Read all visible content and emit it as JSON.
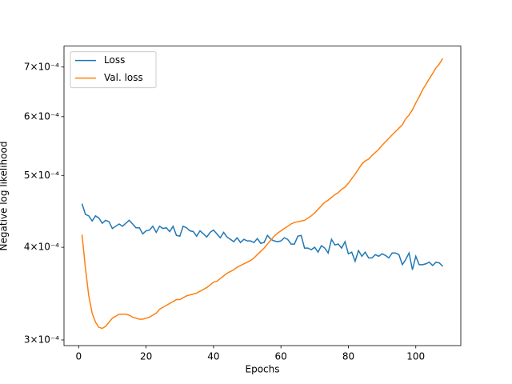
{
  "chart_data": {
    "type": "line",
    "xlabel": "Epochs",
    "ylabel": "Negative log likelihood",
    "log_y": true,
    "legend": "upper left",
    "x": [
      1,
      2,
      3,
      4,
      5,
      6,
      7,
      8,
      9,
      10,
      11,
      12,
      13,
      14,
      15,
      16,
      17,
      18,
      19,
      20,
      21,
      22,
      23,
      24,
      25,
      26,
      27,
      28,
      29,
      30,
      31,
      32,
      33,
      34,
      35,
      36,
      37,
      38,
      39,
      40,
      41,
      42,
      43,
      44,
      45,
      46,
      47,
      48,
      49,
      50,
      51,
      52,
      53,
      54,
      55,
      56,
      57,
      58,
      59,
      60,
      61,
      62,
      63,
      64,
      65,
      66,
      67,
      68,
      69,
      70,
      71,
      72,
      73,
      74,
      75,
      76,
      77,
      78,
      79,
      80,
      81,
      82,
      83,
      84,
      85,
      86,
      87,
      88,
      89,
      90,
      91,
      92,
      93,
      94,
      95,
      96,
      97,
      98,
      99,
      100,
      101,
      102,
      103,
      104,
      105,
      106,
      107,
      108
    ],
    "series": [
      {
        "name": "Loss",
        "color": "#1f77b4",
        "values": [
          0.000458,
          0.000443,
          0.000441,
          0.000434,
          0.000441,
          0.000438,
          0.000431,
          0.000435,
          0.000433,
          0.000424,
          0.000427,
          0.00043,
          0.000427,
          0.000431,
          0.000435,
          0.00043,
          0.000425,
          0.000425,
          0.000417,
          0.000421,
          0.000422,
          0.000427,
          0.000419,
          0.000427,
          0.000424,
          0.000425,
          0.00042,
          0.000427,
          0.000415,
          0.000414,
          0.000427,
          0.000425,
          0.000421,
          0.00042,
          0.000414,
          0.000421,
          0.000417,
          0.000413,
          0.000419,
          0.000422,
          0.000417,
          0.000412,
          0.000419,
          0.000413,
          0.00041,
          0.000407,
          0.000412,
          0.000406,
          0.00041,
          0.000408,
          0.000408,
          0.000406,
          0.000411,
          0.000405,
          0.000406,
          0.000415,
          0.00041,
          0.000408,
          0.000407,
          0.000408,
          0.000412,
          0.00041,
          0.000404,
          0.000404,
          0.000414,
          0.000415,
          0.000399,
          0.000399,
          0.000397,
          0.0004,
          0.000394,
          0.000402,
          0.000399,
          0.000393,
          0.00041,
          0.000403,
          0.000404,
          0.000399,
          0.000407,
          0.000392,
          0.000394,
          0.000383,
          0.000396,
          0.000389,
          0.000394,
          0.000387,
          0.000387,
          0.000391,
          0.000389,
          0.000392,
          0.00039,
          0.000387,
          0.000393,
          0.000393,
          0.000391,
          0.000379,
          0.000385,
          0.000393,
          0.000373,
          0.000389,
          0.000379,
          0.000379,
          0.00038,
          0.000382,
          0.000378,
          0.000382,
          0.000381,
          0.000377
        ]
      },
      {
        "name": "Val. loss",
        "color": "#ff7f0e",
        "values": [
          0.000416,
          0.000375,
          0.000344,
          0.000326,
          0.000317,
          0.000312,
          0.000311,
          0.000313,
          0.000317,
          0.000321,
          0.000323,
          0.000325,
          0.000325,
          0.000325,
          0.000324,
          0.000322,
          0.000321,
          0.00032,
          0.00032,
          0.000321,
          0.000322,
          0.000324,
          0.000326,
          0.00033,
          0.000332,
          0.000334,
          0.000336,
          0.000338,
          0.00034,
          0.00034,
          0.000342,
          0.000344,
          0.000345,
          0.000346,
          0.000347,
          0.000349,
          0.000351,
          0.000353,
          0.000356,
          0.000359,
          0.00036,
          0.000363,
          0.000366,
          0.000369,
          0.000371,
          0.000373,
          0.000376,
          0.000378,
          0.00038,
          0.000382,
          0.000384,
          0.000387,
          0.000391,
          0.000395,
          0.000399,
          0.000404,
          0.000409,
          0.000414,
          0.000418,
          0.000421,
          0.000424,
          0.000427,
          0.00043,
          0.000432,
          0.000433,
          0.000434,
          0.000435,
          0.000438,
          0.000441,
          0.000445,
          0.00045,
          0.000455,
          0.00046,
          0.000463,
          0.000467,
          0.000471,
          0.000474,
          0.000479,
          0.000482,
          0.000488,
          0.000495,
          0.000502,
          0.00051,
          0.000518,
          0.000523,
          0.000526,
          0.000532,
          0.000537,
          0.000542,
          0.000549,
          0.000555,
          0.000561,
          0.000567,
          0.000573,
          0.000579,
          0.000585,
          0.000596,
          0.000603,
          0.000613,
          0.000626,
          0.000638,
          0.000652,
          0.000663,
          0.000675,
          0.000686,
          0.000698,
          0.000707,
          0.000719
        ]
      }
    ],
    "xlim": [
      -4.35,
      113.35
    ],
    "xticks": [
      0,
      20,
      40,
      60,
      80,
      100
    ],
    "ylim": [
      0.0002948,
      0.000747
    ],
    "yticks": [
      {
        "value": 0.0003,
        "label": "3×10⁻⁴"
      },
      {
        "value": 0.0004,
        "label": "4×10⁻⁴"
      },
      {
        "value": 0.0005,
        "label": "5×10⁻⁴"
      },
      {
        "value": 0.0006,
        "label": "6×10⁻⁴"
      },
      {
        "value": 0.0007,
        "label": "7×10⁻⁴"
      }
    ]
  }
}
